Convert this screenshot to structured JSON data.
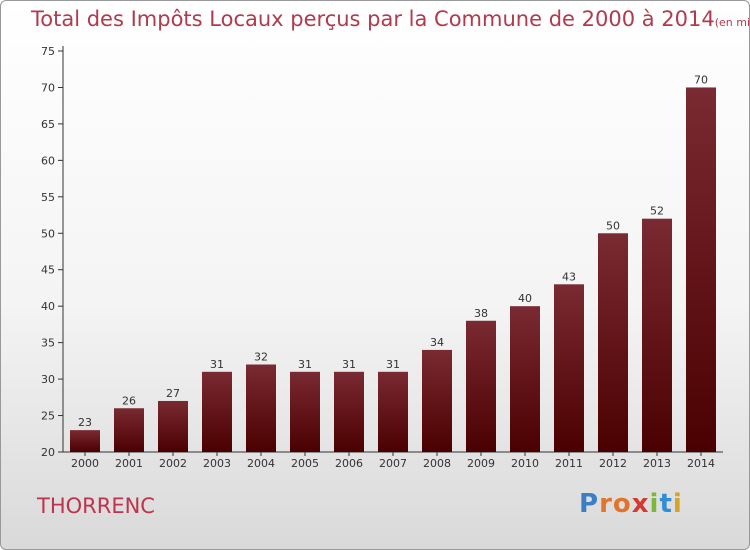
{
  "title": "Total des Impôts Locaux perçus par la Commune de 2000 à 2014",
  "title_unit": "(en milliers d'€)",
  "commune": "THORRENC",
  "logo": {
    "letters": [
      "P",
      "r",
      "o",
      "x",
      "i",
      "t",
      "i"
    ],
    "colors": [
      "#3a7fc4",
      "#e2742a",
      "#e2742a",
      "#d33b2f",
      "#7bb83a",
      "#2f8ed6",
      "#d6a32a"
    ]
  },
  "colors": {
    "bar_top": "#7a2a32",
    "bar_bottom": "#4a0000",
    "title": "#b03a4e"
  },
  "chart_data": {
    "type": "bar",
    "title": "Total des Impôts Locaux perçus par la Commune de 2000 à 2014",
    "xlabel": "",
    "ylabel": "",
    "categories": [
      "2000",
      "2001",
      "2002",
      "2003",
      "2004",
      "2005",
      "2006",
      "2007",
      "2008",
      "2009",
      "2010",
      "2011",
      "2012",
      "2013",
      "2014"
    ],
    "values": [
      23,
      26,
      27,
      31,
      32,
      31,
      31,
      31,
      34,
      38,
      40,
      43,
      50,
      52,
      70
    ],
    "ylim": [
      20,
      75
    ],
    "yticks": [
      20,
      25,
      30,
      35,
      40,
      45,
      50,
      55,
      60,
      65,
      70,
      75
    ],
    "grid": false
  }
}
